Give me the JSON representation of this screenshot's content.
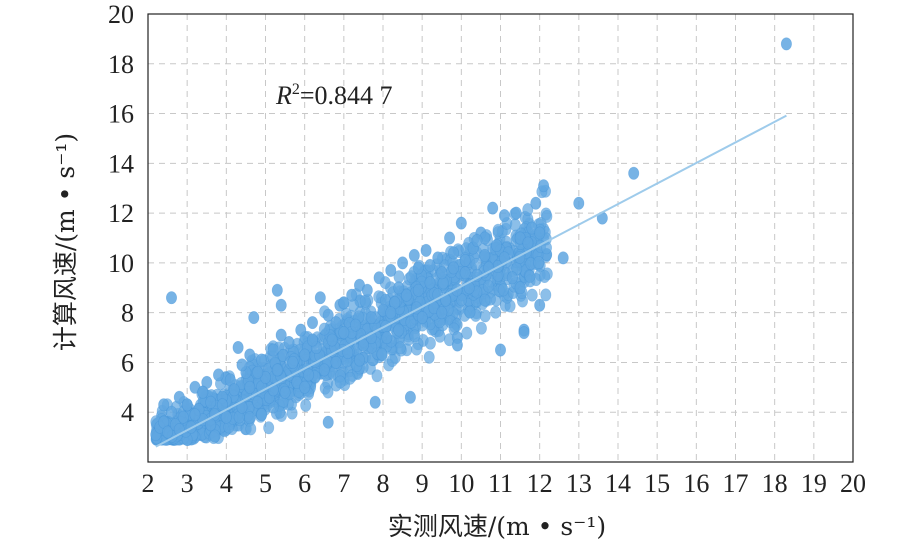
{
  "chart_data": {
    "type": "scatter",
    "xlabel": "实测风速/(m • s⁻¹)",
    "ylabel": "计算风速/(m • s⁻¹)",
    "xlim": [
      2,
      20
    ],
    "ylim": [
      2,
      20
    ],
    "xticks": [
      2,
      3,
      4,
      5,
      6,
      7,
      8,
      9,
      10,
      11,
      12,
      13,
      14,
      15,
      16,
      17,
      18,
      19,
      20
    ],
    "yticks": [
      4,
      6,
      8,
      10,
      12,
      14,
      16,
      18,
      20
    ],
    "grid": true,
    "annotation": {
      "r2_symbol": "R",
      "r2_exponent": "2",
      "r2_value": "=0.844 7"
    },
    "trendline": {
      "slope": 0.826,
      "intercept": 0.8,
      "x_start": 2.2,
      "x_end": 18.3
    },
    "marker_color": "#5fa6e0",
    "line_color": "#9ecbeb",
    "points": [
      [
        2.2,
        3.1
      ],
      [
        2.3,
        3.4
      ],
      [
        2.4,
        3.6
      ],
      [
        2.5,
        3.2
      ],
      [
        2.6,
        4.0
      ],
      [
        2.7,
        3.5
      ],
      [
        2.8,
        4.6
      ],
      [
        2.9,
        3.8
      ],
      [
        3.0,
        4.3
      ],
      [
        3.1,
        3.4
      ],
      [
        3.2,
        5.0
      ],
      [
        3.3,
        4.1
      ],
      [
        3.4,
        3.7
      ],
      [
        3.5,
        5.2
      ],
      [
        3.6,
        4.4
      ],
      [
        3.7,
        3.9
      ],
      [
        3.8,
        5.5
      ],
      [
        3.9,
        4.6
      ],
      [
        4.0,
        3.8
      ],
      [
        4.1,
        5.3
      ],
      [
        4.2,
        4.9
      ],
      [
        4.3,
        6.6
      ],
      [
        4.4,
        4.2
      ],
      [
        4.5,
        5.6
      ],
      [
        4.6,
        5.0
      ],
      [
        4.7,
        7.8
      ],
      [
        4.8,
        4.4
      ],
      [
        4.9,
        6.1
      ],
      [
        5.0,
        5.4
      ],
      [
        5.1,
        4.6
      ],
      [
        5.2,
        6.5
      ],
      [
        5.3,
        5.7
      ],
      [
        5.4,
        8.3
      ],
      [
        5.5,
        4.8
      ],
      [
        5.6,
        6.8
      ],
      [
        5.7,
        6.0
      ],
      [
        5.8,
        5.2
      ],
      [
        5.9,
        7.3
      ],
      [
        6.0,
        6.3
      ],
      [
        6.1,
        5.5
      ],
      [
        6.2,
        7.6
      ],
      [
        6.3,
        6.6
      ],
      [
        6.4,
        8.6
      ],
      [
        6.5,
        5.7
      ],
      [
        6.6,
        7.9
      ],
      [
        6.7,
        6.9
      ],
      [
        6.8,
        6.0
      ],
      [
        6.9,
        8.3
      ],
      [
        7.0,
        7.2
      ],
      [
        7.1,
        6.4
      ],
      [
        7.2,
        8.7
      ],
      [
        7.3,
        7.5
      ],
      [
        7.4,
        9.1
      ],
      [
        7.5,
        6.7
      ],
      [
        7.6,
        8.9
      ],
      [
        7.7,
        7.8
      ],
      [
        7.8,
        4.4
      ],
      [
        7.9,
        9.4
      ],
      [
        8.0,
        8.1
      ],
      [
        8.1,
        7.0
      ],
      [
        8.2,
        9.7
      ],
      [
        8.3,
        8.4
      ],
      [
        8.4,
        7.3
      ],
      [
        8.5,
        10.0
      ],
      [
        8.6,
        8.7
      ],
      [
        8.7,
        4.6
      ],
      [
        8.8,
        10.3
      ],
      [
        8.9,
        8.9
      ],
      [
        9.0,
        7.8
      ],
      [
        9.1,
        10.5
      ],
      [
        9.2,
        9.2
      ],
      [
        9.3,
        8.2
      ],
      [
        9.4,
        10.2
      ],
      [
        9.5,
        9.6
      ],
      [
        9.6,
        8.5
      ],
      [
        9.7,
        11.0
      ],
      [
        9.8,
        9.8
      ],
      [
        9.9,
        7.0
      ],
      [
        10.0,
        11.6
      ],
      [
        10.1,
        10.1
      ],
      [
        10.2,
        9.0
      ],
      [
        10.3,
        10.6
      ],
      [
        10.4,
        9.5
      ],
      [
        10.5,
        11.2
      ],
      [
        10.6,
        10.3
      ],
      [
        10.7,
        9.8
      ],
      [
        10.8,
        12.2
      ],
      [
        10.9,
        10.7
      ],
      [
        11.0,
        6.5
      ],
      [
        11.1,
        11.9
      ],
      [
        11.2,
        10.4
      ],
      [
        11.3,
        9.4
      ],
      [
        11.4,
        12.0
      ],
      [
        11.5,
        11.0
      ],
      [
        11.6,
        7.3
      ],
      [
        11.7,
        10.8
      ],
      [
        11.8,
        11.4
      ],
      [
        11.9,
        12.4
      ],
      [
        12.0,
        11.2
      ],
      [
        12.1,
        13.1
      ],
      [
        12.6,
        10.2
      ],
      [
        13.0,
        12.4
      ],
      [
        13.6,
        11.8
      ],
      [
        14.4,
        13.6
      ],
      [
        18.3,
        18.8
      ],
      [
        2.6,
        8.6
      ],
      [
        5.3,
        8.9
      ],
      [
        6.6,
        3.6
      ],
      [
        9.9,
        6.7
      ],
      [
        11.6,
        7.2
      ],
      [
        2.8,
        3.3
      ],
      [
        3.4,
        4.8
      ],
      [
        4.4,
        5.9
      ],
      [
        4.9,
        3.9
      ],
      [
        5.4,
        7.1
      ],
      [
        6.0,
        5.0
      ],
      [
        6.8,
        7.6
      ],
      [
        7.4,
        6.1
      ],
      [
        8.2,
        8.0
      ],
      [
        8.9,
        9.8
      ],
      [
        9.5,
        8.0
      ],
      [
        10.1,
        9.6
      ],
      [
        10.6,
        11.0
      ],
      [
        11.1,
        10.2
      ],
      [
        3.2,
        3.9
      ],
      [
        3.9,
        4.3
      ],
      [
        4.6,
        6.3
      ],
      [
        5.2,
        4.9
      ],
      [
        6.2,
        6.9
      ],
      [
        7.0,
        8.4
      ],
      [
        7.7,
        7.0
      ],
      [
        8.4,
        9.0
      ],
      [
        9.2,
        9.9
      ],
      [
        9.8,
        10.4
      ],
      [
        10.4,
        10.9
      ],
      [
        11.5,
        9.0
      ],
      [
        12.0,
        8.3
      ],
      [
        2.4,
        4.3
      ],
      [
        3.6,
        3.5
      ],
      [
        4.8,
        5.6
      ]
    ]
  }
}
